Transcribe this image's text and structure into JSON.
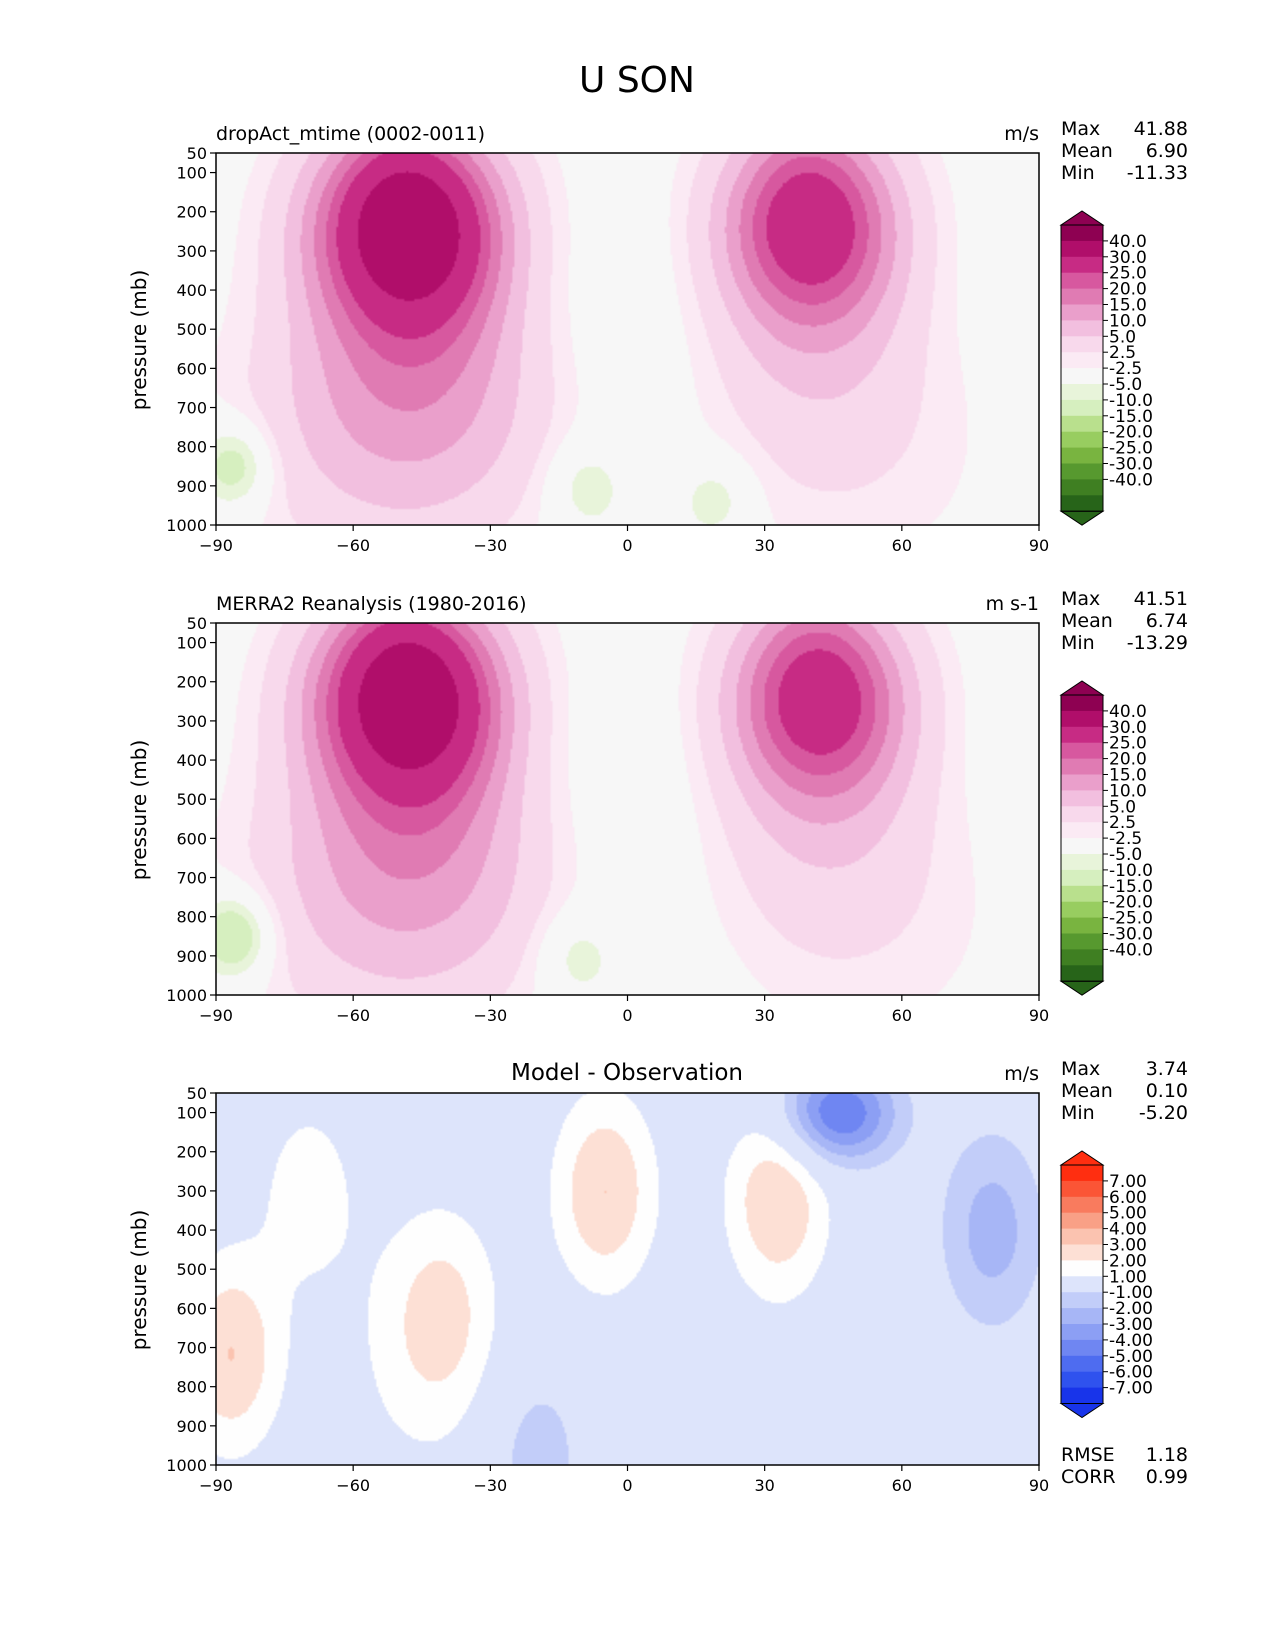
{
  "figure_title": "U SON",
  "chart_data": [
    {
      "type": "contour",
      "title": "dropAct_mtime (0002-0011)",
      "units": "m/s",
      "xlabel": "",
      "ylabel": "pressure (mb)",
      "x_ticks": [
        -90,
        -60,
        -30,
        0,
        30,
        60,
        90
      ],
      "y_ticks": [
        50,
        100,
        200,
        300,
        400,
        500,
        600,
        700,
        800,
        900,
        1000
      ],
      "xlim": [
        -90,
        90
      ],
      "ylim": [
        1000,
        50
      ],
      "stats": [
        {
          "label": "Max",
          "value": "41.88"
        },
        {
          "label": "Mean",
          "value": "6.90"
        },
        {
          "label": "Min",
          "value": "-11.33"
        }
      ],
      "colorbar": {
        "labels": [
          "40.0",
          "30.0",
          "25.0",
          "20.0",
          "15.0",
          "10.0",
          "5.0",
          "2.5",
          "-2.5",
          "-5.0",
          "-10.0",
          "-15.0",
          "-20.0",
          "-25.0",
          "-30.0",
          "-40.0"
        ],
        "colors": [
          "#8e0152",
          "#b00e6a",
          "#c72b84",
          "#d7589f",
          "#e07bb3",
          "#ea9fcb",
          "#f2bfdf",
          "#f8d9ec",
          "#fbeaf4",
          "#f7f7f7",
          "#e8f4da",
          "#d6efbf",
          "#b9e08d",
          "#98cd60",
          "#79b440",
          "#57992f",
          "#3f7f22",
          "#276419"
        ],
        "extend_top": "#8e0152",
        "extend_bottom": "#276419"
      },
      "field_scheme": "full",
      "jets": [
        {
          "lat": -48,
          "p": 225,
          "max": 41.9
        },
        {
          "lat": 40,
          "p": 220,
          "max": 31
        }
      ],
      "surface_features": [
        {
          "lat": -10,
          "p": 900,
          "value": -5
        },
        {
          "lat": 20,
          "p": 930,
          "value": -5
        },
        {
          "lat": -86,
          "p": 850,
          "value": -10
        }
      ]
    },
    {
      "type": "contour",
      "title": "MERRA2 Reanalysis (1980-2016)",
      "units": "m s-1",
      "xlabel": "",
      "ylabel": "pressure (mb)",
      "x_ticks": [
        -90,
        -60,
        -30,
        0,
        30,
        60,
        90
      ],
      "y_ticks": [
        50,
        100,
        200,
        300,
        400,
        500,
        600,
        700,
        800,
        900,
        1000
      ],
      "xlim": [
        -90,
        90
      ],
      "ylim": [
        1000,
        50
      ],
      "stats": [
        {
          "label": "Max",
          "value": "41.51"
        },
        {
          "label": "Mean",
          "value": "6.74"
        },
        {
          "label": "Min",
          "value": "-13.29"
        }
      ],
      "colorbar": {
        "labels": [
          "40.0",
          "30.0",
          "25.0",
          "20.0",
          "15.0",
          "10.0",
          "5.0",
          "2.5",
          "-2.5",
          "-5.0",
          "-10.0",
          "-15.0",
          "-20.0",
          "-25.0",
          "-30.0",
          "-40.0"
        ],
        "colors": [
          "#8e0152",
          "#b00e6a",
          "#c72b84",
          "#d7589f",
          "#e07bb3",
          "#ea9fcb",
          "#f2bfdf",
          "#f8d9ec",
          "#fbeaf4",
          "#f7f7f7",
          "#e8f4da",
          "#d6efbf",
          "#b9e08d",
          "#98cd60",
          "#79b440",
          "#57992f",
          "#3f7f22",
          "#276419"
        ],
        "extend_top": "#8e0152",
        "extend_bottom": "#276419"
      },
      "field_scheme": "full",
      "jets": [
        {
          "lat": -48,
          "p": 225,
          "max": 41.5
        },
        {
          "lat": 42,
          "p": 230,
          "max": 30
        }
      ],
      "surface_features": [
        {
          "lat": -12,
          "p": 900,
          "value": -5
        },
        {
          "lat": -86,
          "p": 850,
          "value": -12
        }
      ]
    },
    {
      "type": "contour",
      "title": "Model - Observation",
      "units": "m/s",
      "xlabel": "",
      "ylabel": "pressure (mb)",
      "x_ticks": [
        -90,
        -60,
        -30,
        0,
        30,
        60,
        90
      ],
      "y_ticks": [
        50,
        100,
        200,
        300,
        400,
        500,
        600,
        700,
        800,
        900,
        1000
      ],
      "xlim": [
        -90,
        90
      ],
      "ylim": [
        1000,
        50
      ],
      "stats": [
        {
          "label": "Max",
          "value": "3.74"
        },
        {
          "label": "Mean",
          "value": "0.10"
        },
        {
          "label": "Min",
          "value": "-5.20"
        }
      ],
      "extra_stats": [
        {
          "label": "RMSE",
          "value": "1.18"
        },
        {
          "label": "CORR",
          "value": "0.99"
        }
      ],
      "colorbar": {
        "labels": [
          "7.00",
          "6.00",
          "5.00",
          "4.00",
          "3.00",
          "2.00",
          "1.00",
          "-1.00",
          "-2.00",
          "-3.00",
          "-4.00",
          "-5.00",
          "-6.00",
          "-7.00"
        ],
        "colors": [
          "#ff2e10",
          "#fb5536",
          "#f97b5e",
          "#f9a086",
          "#fbc3b0",
          "#fde0d5",
          "#fefefe",
          "#dde4fb",
          "#c2cdf9",
          "#a7b6f6",
          "#8c9ff4",
          "#6f86f2",
          "#4e6cf0",
          "#2f52ee",
          "#1834ea"
        ],
        "extend_top": "#ff2e10",
        "extend_bottom": "#1834ea"
      },
      "field_scheme": "diff",
      "features": [
        {
          "lat": -70,
          "p": 300,
          "value": 1.5
        },
        {
          "lat": -40,
          "p": 600,
          "value": 1.5
        },
        {
          "lat": -5,
          "p": 300,
          "value": 3
        },
        {
          "lat": 33,
          "p": 320,
          "value": 3
        },
        {
          "lat": -87,
          "p": 720,
          "value": 3
        },
        {
          "lat": 46,
          "p": 100,
          "value": -5.2
        },
        {
          "lat": 80,
          "p": 400,
          "value": -2.5
        },
        {
          "lat": -20,
          "p": 980,
          "value": -1.5
        }
      ]
    }
  ]
}
